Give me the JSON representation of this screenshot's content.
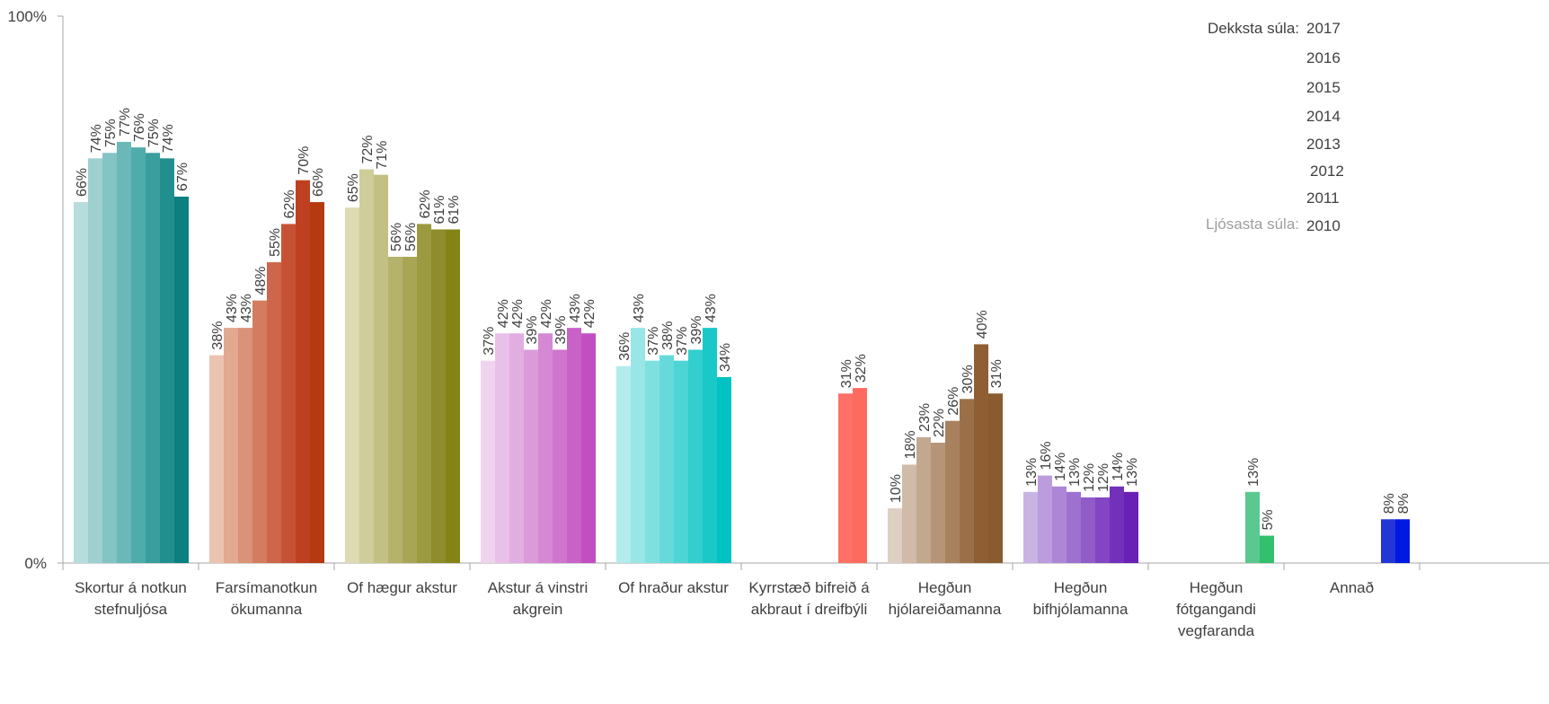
{
  "chart_data": {
    "type": "bar",
    "ylim": [
      0,
      100
    ],
    "y_ticks": [
      {
        "value": 0,
        "label": "0%"
      },
      {
        "value": 100,
        "label": "100%"
      }
    ],
    "grid": false,
    "legend": {
      "position": "top-right",
      "darkest_label": "Dekksta súla:",
      "lightest_label": "Ljósasta súla:",
      "years": [
        "2017",
        "2016",
        "2015",
        "2014",
        "2013",
        "2012",
        "2011",
        "2010"
      ]
    },
    "series_years": [
      "2010",
      "2011",
      "2012",
      "2013",
      "2014",
      "2015",
      "2016",
      "2017"
    ],
    "categories": [
      {
        "label_lines": [
          "Skortur á notkun",
          "stefnuljósa"
        ],
        "values": [
          66,
          74,
          75,
          77,
          76,
          75,
          74,
          67
        ],
        "colors": [
          "#b7dcdc",
          "#9ed0d0",
          "#84c4c4",
          "#6ab8b8",
          "#50abab",
          "#3a9e9e",
          "#228f8f",
          "#0a8080"
        ]
      },
      {
        "label_lines": [
          "Farsímanotkun",
          "ökumanna"
        ],
        "values": [
          38,
          43,
          43,
          48,
          55,
          62,
          70,
          66
        ],
        "colors": [
          "#ebc3b1",
          "#e2a890",
          "#da9278",
          "#d47c60",
          "#cd664a",
          "#c65236",
          "#bf4020",
          "#b53a10"
        ]
      },
      {
        "label_lines": [
          "Of hægur akstur"
        ],
        "values": [
          65,
          72,
          71,
          56,
          56,
          62,
          61,
          61
        ],
        "colors": [
          "#dddbb2",
          "#cfcd9a",
          "#c2c082",
          "#b4b26b",
          "#a8a655",
          "#9b9a40",
          "#8e8c2b",
          "#838316"
        ]
      },
      {
        "label_lines": [
          "Akstur á vinstri",
          "akgrein"
        ],
        "values": [
          37,
          42,
          42,
          39,
          42,
          39,
          43,
          42
        ],
        "colors": [
          "#f0d4ef",
          "#e9c1e8",
          "#e2aee1",
          "#db9bda",
          "#d588d4",
          "#cf75cd",
          "#c862c7",
          "#c24fc1"
        ]
      },
      {
        "label_lines": [
          "Of hraður akstur"
        ],
        "values": [
          36,
          43,
          37,
          38,
          37,
          39,
          43,
          34
        ],
        "colors": [
          "#b2ecec",
          "#98e6e6",
          "#7fe0e0",
          "#66dada",
          "#4dd4d4",
          "#33cece",
          "#1ac8c8",
          "#00c2c2"
        ]
      },
      {
        "label_lines": [
          "Kyrrstæð bifreið á",
          "akbraut í dreifbýli"
        ],
        "values": [
          null,
          null,
          null,
          null,
          null,
          null,
          31,
          32
        ],
        "colors": [
          "#ff6b60",
          "#ff6b60",
          "#ff6b60",
          "#ff6b60",
          "#ff6b60",
          "#ff6b60",
          "#ff7066",
          "#ff6a5e"
        ]
      },
      {
        "label_lines": [
          "Hegðun",
          "hjólareiðamanna"
        ],
        "values": [
          10,
          18,
          23,
          22,
          26,
          30,
          40,
          31
        ],
        "colors": [
          "#ddcfc2",
          "#cfbba8",
          "#c2a88f",
          "#b59577",
          "#a8825f",
          "#9b7049",
          "#8f5e33",
          "#8a5b2f"
        ]
      },
      {
        "label_lines": [
          "Hegðun",
          "bifhjólamanna"
        ],
        "values": [
          13,
          16,
          14,
          13,
          12,
          12,
          14,
          13
        ],
        "colors": [
          "#c9b3e3",
          "#bb9ddd",
          "#ad87d6",
          "#9f71cf",
          "#915bc8",
          "#8345c1",
          "#7330ba",
          "#6a1fb5"
        ]
      },
      {
        "label_lines": [
          "Hegðun",
          "fótgangandi",
          "vegfaranda"
        ],
        "values": [
          null,
          null,
          null,
          null,
          null,
          null,
          13,
          5
        ],
        "colors": [
          "#52c48a",
          "#52c48a",
          "#52c48a",
          "#52c48a",
          "#52c48a",
          "#52c48a",
          "#5bc88f",
          "#33c06c"
        ]
      },
      {
        "label_lines": [
          "Annað"
        ],
        "values": [
          null,
          null,
          null,
          null,
          null,
          null,
          8,
          8
        ],
        "colors": [
          "#1d2ed8",
          "#1d2ed8",
          "#1d2ed8",
          "#1d2ed8",
          "#1d2ed8",
          "#1d2ed8",
          "#2436d6",
          "#0019e0"
        ]
      }
    ]
  }
}
